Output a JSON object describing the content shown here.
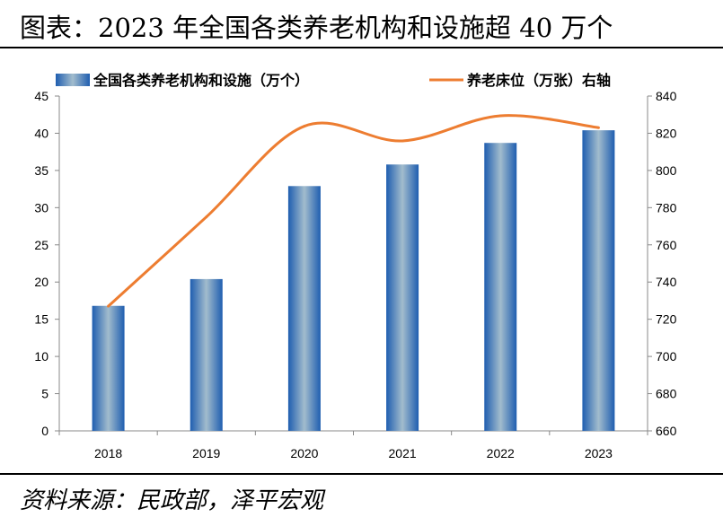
{
  "title": "图表：2023 年全国各类养老机构和设施超 40 万个",
  "source": "资料来源：民政部，泽平宏观",
  "chart_data": {
    "type": "bar+line",
    "categories": [
      "2018",
      "2019",
      "2020",
      "2021",
      "2022",
      "2023"
    ],
    "series": [
      {
        "name": "全国各类养老机构和设施（万个）",
        "type": "bar",
        "axis": "left",
        "color": "#2f6db5",
        "values": [
          16.8,
          20.4,
          32.9,
          35.8,
          38.7,
          40.4
        ]
      },
      {
        "name": "养老床位（万张）右轴",
        "type": "line",
        "axis": "right",
        "color": "#ed7d31",
        "values": [
          727,
          775,
          823.8,
          815.9,
          829.4,
          823
        ]
      }
    ],
    "ylim_left": [
      0,
      45
    ],
    "yticks_left": [
      "0",
      "5",
      "10",
      "15",
      "20",
      "25",
      "30",
      "35",
      "40",
      "45"
    ],
    "ylim_right": [
      660,
      840
    ],
    "yticks_right": [
      "660",
      "680",
      "700",
      "720",
      "740",
      "760",
      "780",
      "800",
      "820",
      "840"
    ],
    "grid": false,
    "legend": "top"
  }
}
